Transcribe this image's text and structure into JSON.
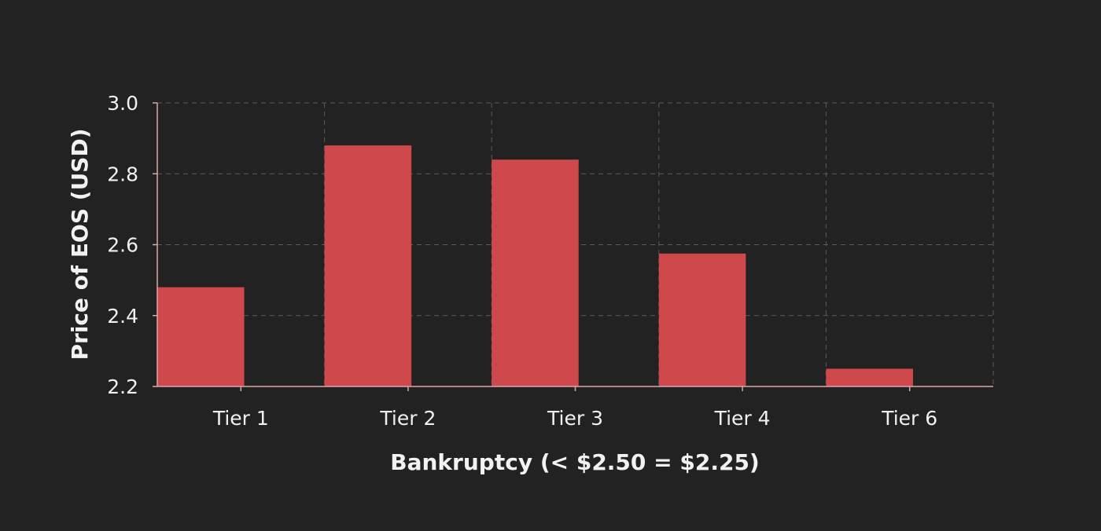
{
  "chart_data": {
    "type": "bar",
    "categories": [
      "Tier 1",
      "Tier 2",
      "Tier 3",
      "Tier 4",
      "Tier 6"
    ],
    "series": [
      {
        "values": [
          2.48,
          2.88,
          2.84,
          2.575,
          2.25
        ]
      }
    ],
    "xlabel": "Bankruptcy (< $2.50 = $2.25)",
    "ylabel": "Price of EOS (USD)",
    "ylim": [
      2.2,
      3.0
    ],
    "yticks": [
      "2.2",
      "2.4",
      "2.6",
      "2.8",
      "3.0"
    ],
    "grid": true,
    "legend": "none",
    "colors": {
      "bar": "#cf484c",
      "background": "#222222"
    }
  }
}
